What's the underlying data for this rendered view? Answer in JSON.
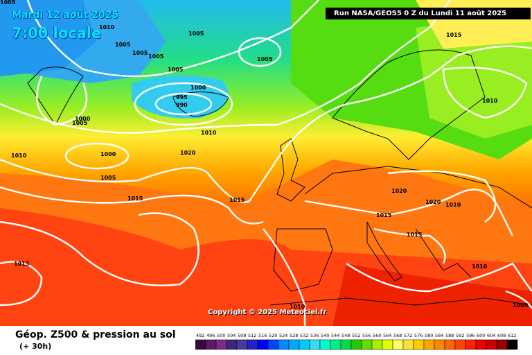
{
  "header": {
    "date": "Mardi 12 août 2025",
    "time": "7:00 locale",
    "run_info": "Run NASA/GEOS5 0 Z du Lundi 11 août 2025"
  },
  "copyright": "Copyright © 2025 Meteociel.fr",
  "footer": {
    "product": "Géop. Z500 & pression au sol",
    "lead": "(+ 30h)"
  },
  "isobar_labels": [
    "1005",
    "1010",
    "1005",
    "1005",
    "1005",
    "1005",
    "1000",
    "995",
    "990",
    "1005",
    "1005",
    "1000",
    "1005",
    "1010",
    "1000",
    "1005",
    "1015",
    "1010",
    "1015",
    "1020",
    "1015",
    "1010",
    "1020",
    "1020",
    "1015",
    "1015",
    "1010",
    "1010",
    "1010",
    "1015",
    "1005"
  ],
  "scale": {
    "values": [
      "492",
      "496",
      "500",
      "504",
      "508",
      "512",
      "516",
      "520",
      "524",
      "528",
      "532",
      "536",
      "540",
      "544",
      "548",
      "552",
      "556",
      "560",
      "564",
      "568",
      "572",
      "576",
      "580",
      "584",
      "588",
      "592",
      "596",
      "600",
      "604",
      "608",
      "612"
    ],
    "colors": [
      "#3a0a3f",
      "#5a1a66",
      "#7a2a88",
      "#3a2878",
      "#4a3aa0",
      "#2222c8",
      "#0000ff",
      "#0044ff",
      "#0088ff",
      "#00aaff",
      "#00ccff",
      "#33ddee",
      "#00ffcc",
      "#00ee88",
      "#00dd44",
      "#22cc00",
      "#66dd00",
      "#aaee00",
      "#ddff00",
      "#ffff66",
      "#ffe033",
      "#ffcc00",
      "#ffa500",
      "#ff8800",
      "#ff6600",
      "#ff4400",
      "#ff2200",
      "#ee0000",
      "#cc0000",
      "#990000",
      "#000000"
    ]
  },
  "colors": {
    "isobar": "#ffffff",
    "title": "#00e8ff"
  }
}
